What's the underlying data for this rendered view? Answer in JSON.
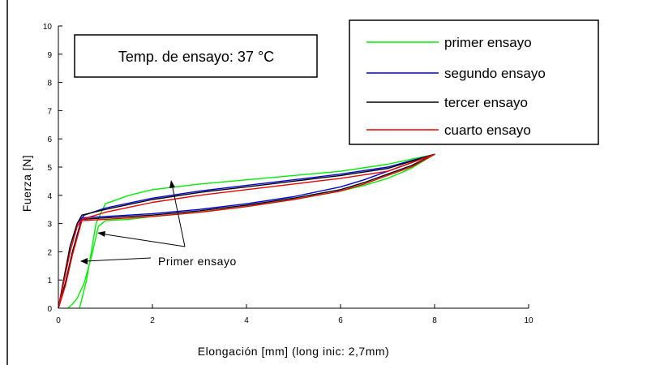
{
  "chart_data": {
    "type": "line",
    "title": "",
    "xlabel": "Elongación [mm] (long inic: 2,7mm)",
    "ylabel": "Fuerza [N]",
    "xlim": [
      0,
      10
    ],
    "ylim": [
      0,
      10
    ],
    "xticks": [
      "0",
      "2",
      "4",
      "6",
      "8",
      "10"
    ],
    "yticks": [
      "0",
      "1",
      "2",
      "3",
      "4",
      "5",
      "6",
      "7",
      "8",
      "9",
      "10"
    ],
    "grid": false,
    "legend_position": "top-right",
    "text_box": "Temp. de ensayo: 37 °C",
    "annotation": "Primer ensayo",
    "series": [
      {
        "name": "primer ensayo",
        "color": "#00ee00",
        "x": [
          0.45,
          0.6,
          0.7,
          0.8,
          1.0,
          1.5,
          2.0,
          3.0,
          4.0,
          5.0,
          6.0,
          7.0,
          8.0,
          7.5,
          7.0,
          6.5,
          6.0,
          5.0,
          4.0,
          3.0,
          2.0,
          1.5,
          1.0,
          0.85,
          0.7,
          0.55,
          0.4,
          0.3,
          0.2
        ],
        "y": [
          0,
          1.0,
          2.0,
          3.0,
          3.7,
          4.0,
          4.2,
          4.4,
          4.55,
          4.7,
          4.85,
          5.1,
          5.45,
          4.95,
          4.6,
          4.35,
          4.15,
          3.85,
          3.6,
          3.4,
          3.25,
          3.15,
          3.1,
          2.9,
          1.8,
          0.9,
          0.35,
          0.15,
          0
        ]
      },
      {
        "name": "segundo ensayo",
        "color": "#0000dd",
        "x": [
          0,
          0.1,
          0.25,
          0.4,
          0.55,
          1.0,
          2.0,
          3.0,
          4.0,
          5.0,
          6.0,
          7.0,
          8.0,
          7.5,
          7.0,
          6.5,
          6.0,
          5.0,
          4.0,
          3.0,
          2.0,
          1.0,
          0.5,
          0.3,
          0.15,
          0
        ],
        "y": [
          0,
          0.9,
          2.2,
          3.0,
          3.3,
          3.55,
          3.9,
          4.15,
          4.35,
          4.55,
          4.75,
          5.0,
          5.45,
          5.15,
          4.85,
          4.55,
          4.3,
          3.95,
          3.7,
          3.5,
          3.35,
          3.25,
          3.2,
          2.0,
          0.9,
          0
        ]
      },
      {
        "name": "tercer ensayo",
        "color": "#000000",
        "x": [
          0,
          0.1,
          0.25,
          0.4,
          0.5,
          1.0,
          2.0,
          3.0,
          4.0,
          5.0,
          6.0,
          7.0,
          8.0,
          7.5,
          7.0,
          6.5,
          6.0,
          5.0,
          4.0,
          3.0,
          2.0,
          1.0,
          0.5,
          0.3,
          0.15,
          0
        ],
        "y": [
          0,
          0.9,
          2.2,
          3.0,
          3.3,
          3.5,
          3.85,
          4.1,
          4.3,
          4.5,
          4.7,
          4.95,
          5.45,
          5.05,
          4.75,
          4.45,
          4.2,
          3.9,
          3.65,
          3.45,
          3.3,
          3.2,
          3.15,
          2.0,
          0.9,
          0
        ]
      },
      {
        "name": "cuarto ensayo",
        "color": "#ee0000",
        "x": [
          0,
          0.1,
          0.25,
          0.4,
          0.5,
          1.0,
          2.0,
          3.0,
          4.0,
          5.0,
          6.0,
          7.0,
          8.0,
          7.5,
          7.0,
          6.5,
          6.0,
          5.0,
          4.0,
          3.0,
          2.0,
          1.0,
          0.5,
          0.3,
          0.15,
          0
        ],
        "y": [
          0,
          0.8,
          2.0,
          2.9,
          3.15,
          3.4,
          3.75,
          4.0,
          4.2,
          4.4,
          4.6,
          4.85,
          5.45,
          5.0,
          4.7,
          4.4,
          4.15,
          3.85,
          3.6,
          3.4,
          3.25,
          3.15,
          3.1,
          1.9,
          0.8,
          0
        ]
      }
    ]
  }
}
